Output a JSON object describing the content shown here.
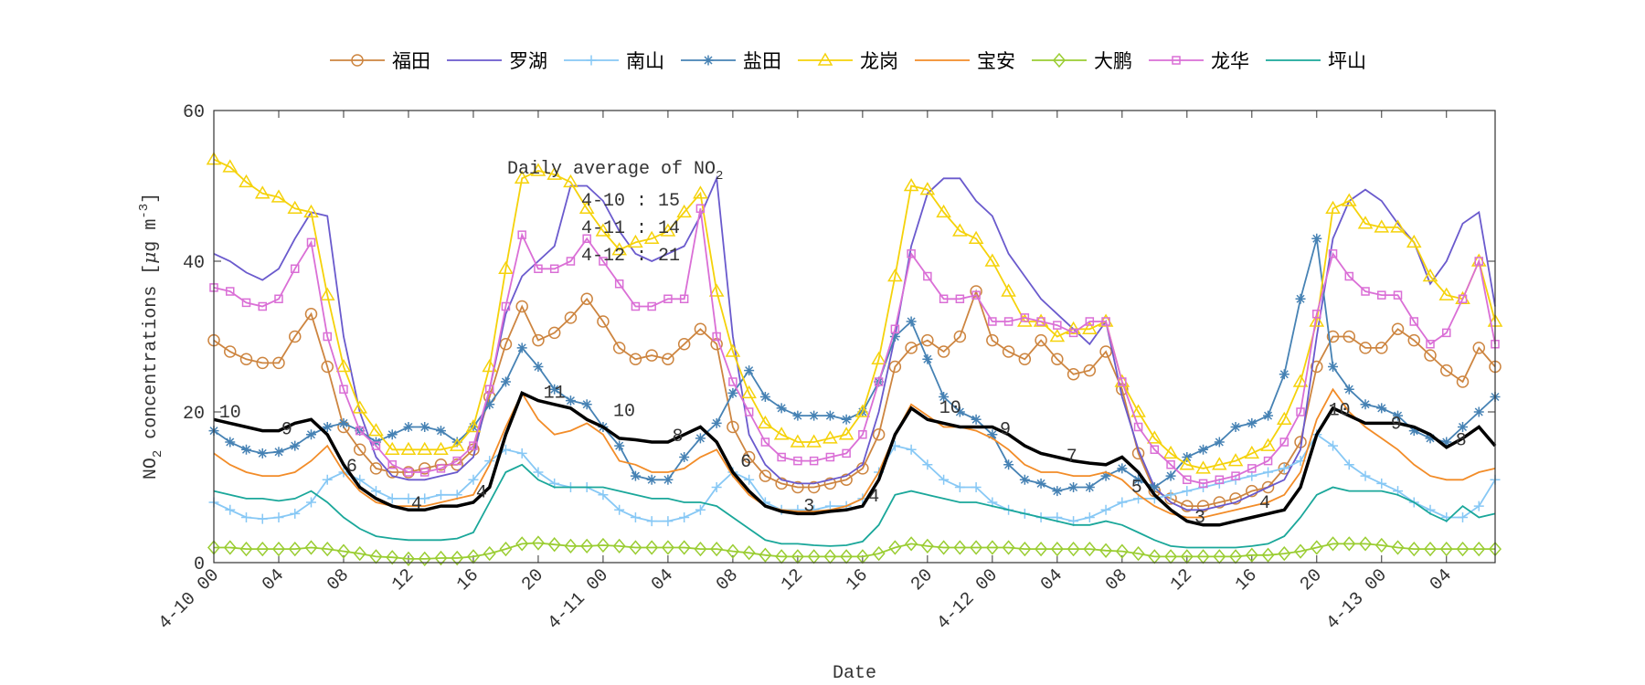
{
  "chart_data": {
    "type": "line",
    "xlabel": "Date",
    "ylabel": {
      "base": "NO",
      "sub": "2",
      "main": " concentrations [",
      "mu": "μ",
      "unit": "g m",
      "sup": "-3",
      "close": "]"
    },
    "xlim": [
      0,
      79
    ],
    "ylim": [
      0,
      60
    ],
    "yticks": [
      0,
      20,
      40,
      60
    ],
    "xticks": [
      {
        "value": 0,
        "label": "4-10 00"
      },
      {
        "value": 4,
        "label": "04"
      },
      {
        "value": 8,
        "label": "08"
      },
      {
        "value": 12,
        "label": "12"
      },
      {
        "value": 16,
        "label": "16"
      },
      {
        "value": 20,
        "label": "20"
      },
      {
        "value": 24,
        "label": "4-11 00"
      },
      {
        "value": 28,
        "label": "04"
      },
      {
        "value": 32,
        "label": "08"
      },
      {
        "value": 36,
        "label": "12"
      },
      {
        "value": 40,
        "label": "16"
      },
      {
        "value": 44,
        "label": "20"
      },
      {
        "value": 48,
        "label": "4-12 00"
      },
      {
        "value": 52,
        "label": "04"
      },
      {
        "value": 56,
        "label": "08"
      },
      {
        "value": 60,
        "label": "12"
      },
      {
        "value": 64,
        "label": "16"
      },
      {
        "value": 68,
        "label": "20"
      },
      {
        "value": 72,
        "label": "4-13 00"
      },
      {
        "value": 76,
        "label": "04"
      }
    ],
    "x": [
      0,
      1,
      2,
      3,
      4,
      5,
      6,
      7,
      8,
      9,
      10,
      11,
      12,
      13,
      14,
      15,
      16,
      17,
      18,
      19,
      20,
      21,
      22,
      23,
      24,
      25,
      26,
      27,
      28,
      29,
      30,
      31,
      32,
      33,
      34,
      35,
      36,
      37,
      38,
      39,
      40,
      41,
      42,
      43,
      44,
      45,
      46,
      47,
      48,
      49,
      50,
      51,
      52,
      53,
      54,
      55,
      56,
      57,
      58,
      59,
      60,
      61,
      62,
      63,
      64,
      65,
      66,
      67,
      68,
      69,
      70,
      71,
      72,
      73,
      74,
      75,
      76,
      77,
      78,
      79
    ],
    "legend": "top",
    "series": [
      {
        "name": "福田",
        "color": "#cd8540",
        "marker": "circle",
        "values": [
          29.5,
          28,
          27,
          26.5,
          26.5,
          30,
          33,
          26,
          18,
          15,
          12.5,
          12,
          12,
          12.5,
          13,
          13,
          15,
          22,
          29,
          34,
          29.5,
          30.5,
          32.5,
          35,
          32,
          28.5,
          27,
          27.5,
          27,
          29,
          31,
          29,
          18,
          14,
          11.5,
          10.5,
          10,
          10,
          10.5,
          11,
          12.5,
          17,
          26,
          28.5,
          29.5,
          28,
          30,
          36,
          29.5,
          28,
          27,
          29.5,
          27,
          25,
          25.5,
          28,
          23,
          14.5,
          9.5,
          8.5,
          7.5,
          7.5,
          8,
          8.5,
          9.5,
          10,
          12.5,
          16,
          26,
          30,
          30,
          28.5,
          28.5,
          31,
          29.5,
          27.5,
          25.5,
          24,
          28.5,
          26
        ]
      },
      {
        "name": "罗湖",
        "color": "#6a5acd",
        "marker": "none",
        "values": [
          41,
          40,
          38.5,
          37.5,
          39,
          43,
          46.5,
          46,
          30,
          20,
          14,
          11.5,
          11,
          11,
          11.5,
          12,
          14,
          23,
          33,
          38,
          40,
          42,
          50,
          50,
          48,
          44,
          41,
          40,
          41,
          42,
          46,
          51,
          30,
          17,
          13,
          11,
          10.5,
          10.5,
          11,
          11.5,
          13,
          20,
          30,
          42,
          49,
          51,
          51,
          48,
          46,
          41,
          38,
          35,
          33,
          31,
          29,
          32,
          22,
          15,
          10,
          8,
          7,
          7,
          7.5,
          8,
          9,
          10,
          11,
          15,
          30,
          43,
          48,
          49.5,
          48,
          45,
          42.5,
          37,
          40,
          45,
          46.5,
          34
        ]
      },
      {
        "name": "南山",
        "color": "#87c8f5",
        "marker": "plus",
        "values": [
          8,
          7,
          6,
          5.8,
          6,
          6.5,
          8,
          11,
          12,
          11,
          9.5,
          8.5,
          8.5,
          8.5,
          9,
          9,
          11,
          13.5,
          15,
          14.5,
          12,
          10.5,
          10,
          10,
          9,
          7,
          6,
          5.5,
          5.5,
          6,
          7,
          10,
          12,
          11,
          8,
          7,
          7,
          7,
          7.5,
          7.5,
          8.5,
          12,
          15.5,
          15,
          13,
          11,
          10,
          10,
          8,
          7,
          6.5,
          6,
          6,
          5.5,
          6,
          7,
          8,
          8.5,
          8.5,
          9,
          9.5,
          10,
          10.5,
          11,
          11.5,
          12,
          12.5,
          13.5,
          17,
          15.5,
          13,
          11.5,
          10.5,
          9.5,
          8,
          7,
          6,
          6,
          7.5,
          11
        ]
      },
      {
        "name": "盐田",
        "color": "#4682b4",
        "marker": "star",
        "values": [
          17.5,
          16,
          15,
          14.5,
          14.7,
          15.5,
          17,
          18,
          18.5,
          17.5,
          16,
          17,
          18,
          18,
          17.5,
          16,
          18,
          21,
          24,
          28.5,
          26,
          23,
          21.5,
          21,
          18,
          15.5,
          11.5,
          11,
          11,
          14,
          16.5,
          18.5,
          22.5,
          25.5,
          22,
          20.5,
          19.5,
          19.5,
          19.5,
          19,
          20,
          24,
          30,
          32,
          27,
          22,
          20,
          19,
          17,
          13,
          11,
          10.5,
          9.5,
          10,
          10,
          11.5,
          12.5,
          11,
          10,
          11.5,
          14,
          15,
          16,
          18,
          18.5,
          19.5,
          25,
          35,
          43,
          26,
          23,
          21,
          20.5,
          19.5,
          17.5,
          16.5,
          16,
          18,
          20,
          22
        ]
      },
      {
        "name": "龙岗",
        "color": "#f5d20a",
        "marker": "triangle",
        "values": [
          53.5,
          52.5,
          50.5,
          49,
          48.5,
          47,
          46.5,
          35.5,
          26,
          20.5,
          17.5,
          15,
          15,
          15,
          15,
          15.5,
          18,
          26,
          39,
          51,
          52,
          51.5,
          50.5,
          47,
          44,
          41.5,
          42.5,
          43,
          44,
          46.5,
          49,
          36,
          28,
          22.5,
          18.5,
          17,
          16,
          16,
          16.5,
          17,
          20,
          27,
          38,
          50,
          49.5,
          46.5,
          44,
          43,
          40,
          36,
          32,
          32,
          30,
          31,
          31,
          32,
          24,
          20,
          16.5,
          14.5,
          13,
          12.5,
          13,
          13.5,
          14.5,
          15.5,
          19,
          24,
          32,
          47,
          48,
          45,
          44.5,
          44.5,
          42.5,
          38,
          35.5,
          35,
          40,
          32
        ]
      },
      {
        "name": "宝安",
        "color": "#f28c28",
        "marker": "none",
        "values": [
          14.5,
          13,
          12,
          11.5,
          11.5,
          12,
          13.5,
          15.5,
          12,
          9.5,
          8,
          7.5,
          7.5,
          7.5,
          8,
          8.5,
          9,
          13,
          18,
          22.5,
          19,
          17,
          17.5,
          18.5,
          17,
          13.5,
          13,
          12,
          12,
          12.5,
          14,
          15,
          11.5,
          9,
          7.5,
          7,
          6.8,
          6.8,
          7,
          7.5,
          8.5,
          12,
          17,
          21,
          19.5,
          18,
          18,
          17.5,
          16.5,
          15,
          13,
          12,
          12,
          11.5,
          11.5,
          12,
          11,
          9,
          7.5,
          6.5,
          6,
          6,
          6.5,
          7,
          7.5,
          8,
          9,
          12,
          19,
          23,
          20,
          18,
          16.5,
          15,
          13,
          11.5,
          11,
          11,
          12,
          12.5
        ]
      },
      {
        "name": "大鹏",
        "color": "#9acd32",
        "marker": "diamond",
        "values": [
          2,
          2,
          1.8,
          1.8,
          1.8,
          1.8,
          2,
          1.8,
          1.5,
          1.2,
          0.8,
          0.7,
          0.5,
          0.5,
          0.6,
          0.6,
          0.8,
          1.2,
          1.8,
          2.5,
          2.6,
          2.4,
          2.2,
          2.2,
          2.3,
          2.2,
          2,
          2,
          2,
          2,
          1.8,
          1.8,
          1.5,
          1.3,
          1,
          0.8,
          0.8,
          0.8,
          0.8,
          0.8,
          0.8,
          1.2,
          2,
          2.5,
          2.2,
          2,
          2,
          2,
          2,
          2,
          1.8,
          1.8,
          1.8,
          1.8,
          1.8,
          1.6,
          1.5,
          1.2,
          0.8,
          0.8,
          0.8,
          0.8,
          0.8,
          0.8,
          1,
          1,
          1.2,
          1.5,
          2,
          2.5,
          2.5,
          2.5,
          2.3,
          2,
          1.8,
          1.8,
          1.8,
          1.8,
          1.8,
          1.8
        ]
      },
      {
        "name": "龙华",
        "color": "#da6fd6",
        "marker": "square",
        "values": [
          36.5,
          36,
          34.5,
          34,
          35,
          39,
          42.5,
          30,
          23,
          17.5,
          15.5,
          13,
          12,
          12,
          12.5,
          13.5,
          15.5,
          23,
          34,
          43.5,
          39,
          39,
          40,
          43,
          40,
          37,
          34,
          34,
          35,
          35,
          47,
          30,
          24,
          20,
          16,
          14,
          13.5,
          13.5,
          14,
          14.5,
          17,
          24,
          31,
          41,
          38,
          35,
          35,
          35.5,
          32,
          32,
          32.5,
          32,
          31.5,
          30.5,
          32,
          32,
          24,
          18,
          15,
          13,
          11,
          10.5,
          11,
          11.5,
          12.5,
          13.5,
          16,
          20,
          33,
          41,
          38,
          36,
          35.5,
          35.5,
          32,
          29,
          30.5,
          35,
          40,
          29
        ]
      },
      {
        "name": "坪山",
        "color": "#1aa79a",
        "marker": "none",
        "values": [
          9.5,
          9,
          8.5,
          8.5,
          8.2,
          8.5,
          9.5,
          8,
          6,
          4.5,
          3.5,
          3.2,
          3,
          3,
          3,
          3.2,
          4,
          8,
          12,
          13,
          11,
          10,
          10,
          10,
          10,
          9.5,
          9,
          8.5,
          8.5,
          8,
          8,
          7.5,
          6,
          4.5,
          3,
          2.5,
          2.5,
          2.3,
          2.2,
          2.3,
          2.8,
          5,
          9,
          9.5,
          9,
          8.5,
          8,
          8,
          7.5,
          7,
          6.5,
          6,
          5.5,
          5,
          5,
          5.5,
          5,
          4,
          3,
          2.2,
          2,
          2,
          2,
          2,
          2.2,
          2.5,
          3.5,
          6,
          9,
          10,
          9.5,
          9.5,
          9.5,
          9,
          8,
          6.5,
          5.5,
          7.5,
          6,
          6.5
        ]
      }
    ],
    "average": {
      "color": "#000000",
      "values": [
        19,
        18.5,
        18,
        17.5,
        17.5,
        18.5,
        19,
        17,
        13,
        10,
        8.5,
        7.5,
        7,
        7,
        7.5,
        7.5,
        8,
        10,
        17,
        22.5,
        21.5,
        21,
        20.5,
        19,
        18,
        16.5,
        16.3,
        16,
        16,
        17,
        18,
        16,
        12,
        9.5,
        7.5,
        6.8,
        6.5,
        6.5,
        6.8,
        7,
        7.5,
        11,
        17,
        20.5,
        19,
        18.5,
        18,
        18,
        18,
        17,
        15.5,
        14.5,
        14,
        13.5,
        13.2,
        13,
        14,
        12,
        9,
        7,
        5.5,
        5,
        5,
        5.5,
        6,
        6.5,
        7,
        10,
        17,
        20.5,
        19.5,
        18.5,
        18.5,
        18.5,
        18,
        17,
        15.3,
        16.5,
        18,
        15.5
      ]
    },
    "point_labels": [
      {
        "text": "10",
        "x": 1,
        "y": 20.1
      },
      {
        "text": "9",
        "x": 4.5,
        "y": 17.9
      },
      {
        "text": "6",
        "x": 8.5,
        "y": 13
      },
      {
        "text": "4",
        "x": 12.5,
        "y": 8
      },
      {
        "text": "4",
        "x": 16.5,
        "y": 9.5
      },
      {
        "text": "11",
        "x": 21,
        "y": 22.7
      },
      {
        "text": "10",
        "x": 25.3,
        "y": 20.3
      },
      {
        "text": "8",
        "x": 28.6,
        "y": 17
      },
      {
        "text": "6",
        "x": 32.8,
        "y": 13.6
      },
      {
        "text": "3",
        "x": 36.7,
        "y": 7.7
      },
      {
        "text": "4",
        "x": 40.7,
        "y": 9
      },
      {
        "text": "10",
        "x": 45.4,
        "y": 20.7
      },
      {
        "text": "9",
        "x": 48.8,
        "y": 17.9
      },
      {
        "text": "7",
        "x": 52.9,
        "y": 14.3
      },
      {
        "text": "5",
        "x": 56.9,
        "y": 10.2
      },
      {
        "text": "3",
        "x": 60.8,
        "y": 6.2
      },
      {
        "text": "4",
        "x": 64.8,
        "y": 8.1
      },
      {
        "text": "10",
        "x": 69.4,
        "y": 20.4
      },
      {
        "text": "9",
        "x": 72.9,
        "y": 18.6
      },
      {
        "text": "8",
        "x": 76.9,
        "y": 16.4
      }
    ],
    "daily_average": {
      "title": "Daily average of NO",
      "title_sub": "2",
      "lines": [
        "4-10 : 15",
        "4-11 : 14",
        "4-12 : 21"
      ]
    }
  }
}
